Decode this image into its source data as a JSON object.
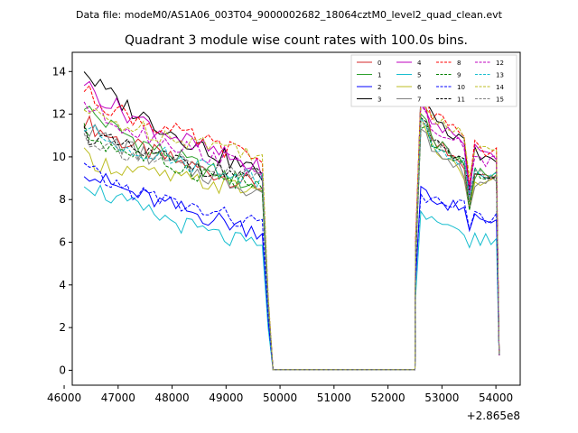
{
  "header": {
    "data_file": "Data file: modeM0/AS1A06_003T04_9000002682_18064cztM0_level2_quad_clean.evt"
  },
  "chart_data": {
    "type": "line",
    "title": "Quadrant 3 module wise count rates with 100.0s bins.",
    "xlabel": "",
    "ylabel": "",
    "x_offset_label": "+2.865e8",
    "xlim": [
      46150,
      54450
    ],
    "ylim": [
      -0.7,
      14.9
    ],
    "x_ticks": [
      46000,
      47000,
      48000,
      49000,
      50000,
      51000,
      52000,
      53000,
      54000
    ],
    "x_tick_labels": [
      "46000",
      "47000",
      "48000",
      "49000",
      "50000",
      "51000",
      "52000",
      "53000",
      "54000"
    ],
    "y_ticks": [
      0,
      2,
      4,
      6,
      8,
      10,
      12,
      14
    ],
    "y_tick_labels": [
      "0",
      "2",
      "4",
      "6",
      "8",
      "10",
      "12",
      "14"
    ],
    "legend_position": "top-right",
    "segments": {
      "seg1_start": 46370,
      "seg1_step": 100,
      "seg1_points": 34,
      "gap_start": 49870,
      "gap_end": 52500,
      "seg2_start": 52510,
      "seg2_step": 100,
      "seg2_points": 16
    },
    "series": [
      {
        "name": "0",
        "color": "#d62728",
        "dash": "solid",
        "seg1_start": 11.8,
        "seg1_end": 8.6,
        "seg2_peak": 12.4,
        "seg2_level": 9.2,
        "seg2_dip": 7.8,
        "seg2_end_level": 9.0
      },
      {
        "name": "1",
        "color": "#2ca02c",
        "dash": "solid",
        "seg1_start": 12.5,
        "seg1_end": 8.5,
        "seg2_peak": 12.2,
        "seg2_level": 9.4,
        "seg2_dip": 7.6,
        "seg2_end_level": 9.2
      },
      {
        "name": "2",
        "color": "#0000ff",
        "dash": "solid",
        "seg1_start": 9.5,
        "seg1_end": 6.5,
        "seg2_peak": 8.6,
        "seg2_level": 7.4,
        "seg2_dip": 6.4,
        "seg2_end_level": 7.0
      },
      {
        "name": "3",
        "color": "#000000",
        "dash": "solid",
        "seg1_start": 14.2,
        "seg1_end": 9.2,
        "seg2_peak": 13.2,
        "seg2_level": 10.4,
        "seg2_dip": 8.6,
        "seg2_end_level": 9.8
      },
      {
        "name": "4",
        "color": "#bf00bf",
        "dash": "solid",
        "seg1_start": 13.6,
        "seg1_end": 9.4,
        "seg2_peak": 12.6,
        "seg2_level": 10.6,
        "seg2_dip": 8.4,
        "seg2_end_level": 10.0
      },
      {
        "name": "5",
        "color": "#17becf",
        "dash": "solid",
        "seg1_start": 9.0,
        "seg1_end": 5.7,
        "seg2_peak": 7.6,
        "seg2_level": 6.4,
        "seg2_dip": 5.5,
        "seg2_end_level": 6.1
      },
      {
        "name": "6",
        "color": "#bcbd22",
        "dash": "solid",
        "seg1_start": 10.0,
        "seg1_end": 8.4,
        "seg2_peak": 11.8,
        "seg2_level": 9.0,
        "seg2_dip": 7.4,
        "seg2_end_level": 8.8
      },
      {
        "name": "7",
        "color": "#7f7f7f",
        "dash": "solid",
        "seg1_start": 11.6,
        "seg1_end": 8.4,
        "seg2_peak": 11.6,
        "seg2_level": 9.0,
        "seg2_dip": 7.4,
        "seg2_end_level": 8.8
      },
      {
        "name": "8",
        "color": "#ff0000",
        "dash": "dashed",
        "seg1_start": 13.2,
        "seg1_end": 9.9,
        "seg2_peak": 13.0,
        "seg2_level": 11.0,
        "seg2_dip": 8.8,
        "seg2_end_level": 10.2
      },
      {
        "name": "9",
        "color": "#008000",
        "dash": "dashed",
        "seg1_start": 11.2,
        "seg1_end": 8.6,
        "seg2_peak": 11.6,
        "seg2_level": 9.4,
        "seg2_dip": 7.7,
        "seg2_end_level": 9.0
      },
      {
        "name": "10",
        "color": "#0000ff",
        "dash": "dashed",
        "seg1_start": 9.5,
        "seg1_end": 6.8,
        "seg2_peak": 8.4,
        "seg2_level": 7.6,
        "seg2_dip": 6.6,
        "seg2_end_level": 7.2
      },
      {
        "name": "11",
        "color": "#000000",
        "dash": "dashed",
        "seg1_start": 11.2,
        "seg1_end": 9.0,
        "seg2_peak": 11.8,
        "seg2_level": 9.6,
        "seg2_dip": 8.0,
        "seg2_end_level": 9.2
      },
      {
        "name": "12",
        "color": "#bf00bf",
        "dash": "dashed",
        "seg1_start": 12.6,
        "seg1_end": 9.4,
        "seg2_peak": 12.4,
        "seg2_level": 10.4,
        "seg2_dip": 8.6,
        "seg2_end_level": 9.8
      },
      {
        "name": "13",
        "color": "#17becf",
        "dash": "dashed",
        "seg1_start": 11.4,
        "seg1_end": 9.0,
        "seg2_peak": 11.6,
        "seg2_level": 9.6,
        "seg2_dip": 8.0,
        "seg2_end_level": 9.2
      },
      {
        "name": "14",
        "color": "#bcbd22",
        "dash": "dashed",
        "seg1_start": 12.2,
        "seg1_end": 10.2,
        "seg2_peak": 12.8,
        "seg2_level": 10.8,
        "seg2_dip": 8.8,
        "seg2_end_level": 10.4
      },
      {
        "name": "15",
        "color": "#7f7f7f",
        "dash": "dashed",
        "seg1_start": 11.0,
        "seg1_end": 9.0,
        "seg2_peak": 11.8,
        "seg2_level": 9.6,
        "seg2_dip": 8.0,
        "seg2_end_level": 9.2
      }
    ]
  }
}
